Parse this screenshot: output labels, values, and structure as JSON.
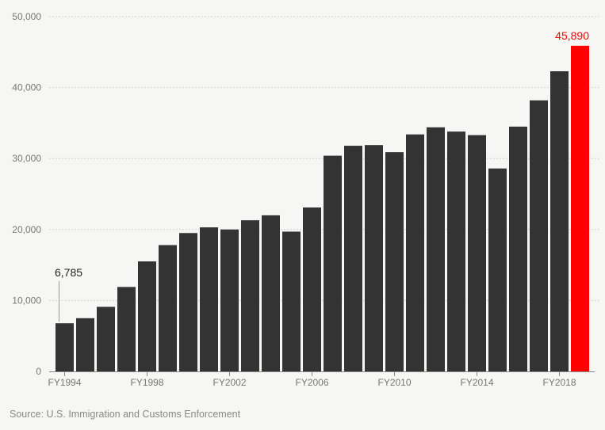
{
  "chart_data": {
    "type": "bar",
    "title": "",
    "xlabel": "",
    "ylabel": "",
    "categories": [
      "FY1994",
      "FY1995",
      "FY1996",
      "FY1997",
      "FY1998",
      "FY1999",
      "FY2000",
      "FY2001",
      "FY2002",
      "FY2003",
      "FY2004",
      "FY2005",
      "FY2006",
      "FY2007",
      "FY2008",
      "FY2009",
      "FY2010",
      "FY2011",
      "FY2012",
      "FY2013",
      "FY2014",
      "FY2015",
      "FY2016",
      "FY2017",
      "FY2018",
      "FY2019"
    ],
    "values": [
      6785,
      7500,
      9100,
      11900,
      15500,
      17800,
      19500,
      20300,
      20000,
      21300,
      22000,
      19700,
      23100,
      30400,
      31800,
      31900,
      30900,
      33400,
      34400,
      33800,
      33300,
      28600,
      34500,
      38200,
      42300,
      45890
    ],
    "x_tick_labels": [
      "FY1994",
      "FY1998",
      "FY2002",
      "FY2006",
      "FY2010",
      "FY2014",
      "FY2018"
    ],
    "y_ticks": [
      0,
      10000,
      20000,
      30000,
      40000,
      50000
    ],
    "y_tick_labels": [
      "0",
      "10,000",
      "20,000",
      "30,000",
      "40,000",
      "50,000"
    ],
    "ylim": [
      0,
      50000
    ],
    "grid": true,
    "bar_color": "#333333",
    "highlight_color": "#ff0000",
    "highlight_index": 25,
    "annotations": [
      {
        "label": "6,785",
        "index": 0,
        "color": "#222222"
      },
      {
        "label": "45,890",
        "index": 25,
        "color": "#ff0000"
      }
    ]
  },
  "source_text": "Source: U.S. Immigration and Customs Enforcement"
}
